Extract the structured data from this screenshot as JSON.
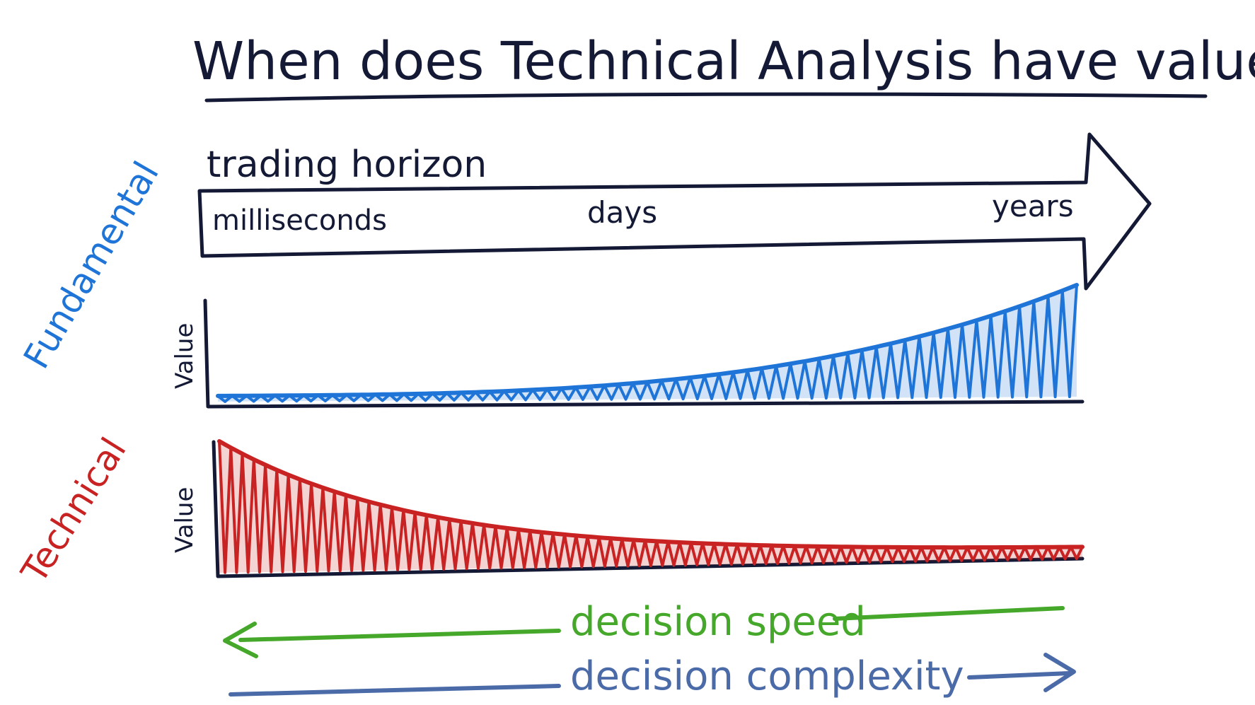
{
  "title": "When does Technical Analysis have value?",
  "horizon": {
    "label": "trading horizon",
    "ticks": [
      "milliseconds",
      "days",
      "years"
    ]
  },
  "fundamental": {
    "side_label": "Fundamental",
    "axis_label": "Value",
    "color": "#1f74d8"
  },
  "technical": {
    "side_label": "Technical",
    "axis_label": "Value",
    "color": "#c82222"
  },
  "decision_speed": {
    "label": "decision speed",
    "color": "#46a82a"
  },
  "decision_complexity": {
    "label": "decision complexity",
    "color": "#4a6aa8"
  },
  "colors": {
    "ink": "#141a35",
    "background": "#ffffff"
  }
}
